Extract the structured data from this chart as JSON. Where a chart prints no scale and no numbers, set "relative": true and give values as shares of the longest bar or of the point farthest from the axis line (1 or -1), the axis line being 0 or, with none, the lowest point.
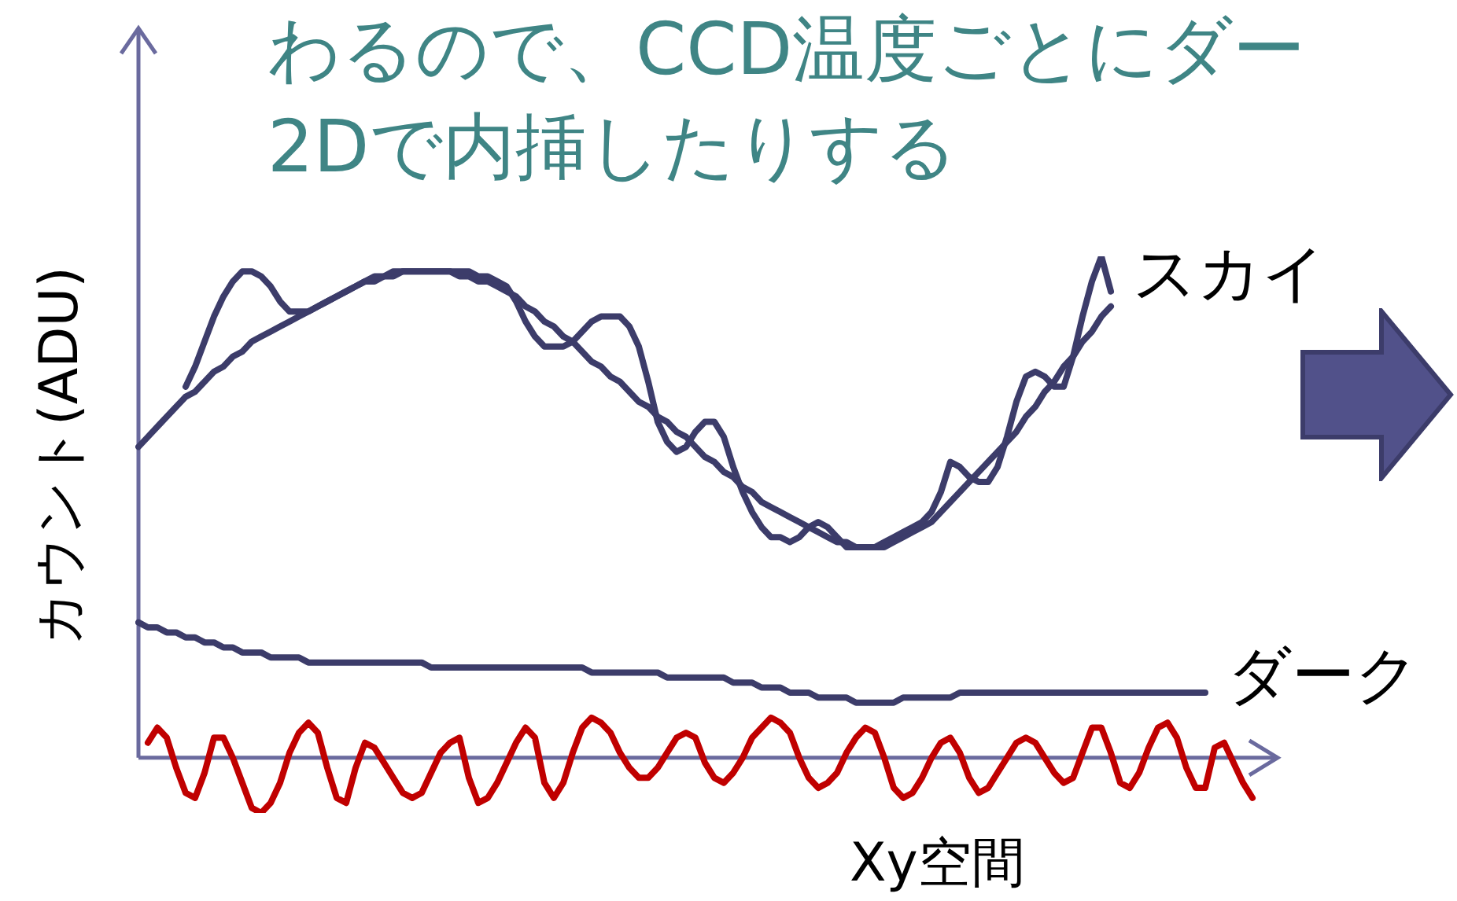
{
  "chart_data": {
    "type": "line",
    "relative": true,
    "title": "わるので、CCD温度ごとにダー\n2Dで内挿したりする",
    "xlabel": "Xy空間",
    "ylabel": "カウント(ADU)",
    "ref_lines": [
      {
        "axis": "y",
        "value": 0,
        "color": "#6a6a9e"
      }
    ],
    "grid": false,
    "legend": false,
    "marker": "none",
    "line_style": "solid",
    "categories": [
      null,
      null,
      null,
      null,
      null,
      null,
      null,
      null,
      null,
      null,
      null,
      null,
      null,
      null,
      null,
      null,
      null,
      null,
      null,
      null,
      null,
      null,
      null,
      null,
      null,
      null,
      null,
      null,
      null,
      null,
      null,
      null,
      null,
      null,
      null,
      null,
      null,
      null,
      null,
      null,
      null,
      null,
      null,
      null,
      null,
      null,
      null,
      null,
      null,
      null,
      null,
      null,
      null,
      null,
      null,
      null,
      null,
      null,
      null,
      null,
      null,
      null,
      null,
      null,
      null,
      null,
      null,
      null,
      null,
      null,
      null,
      null,
      null,
      null,
      null,
      null,
      null,
      null,
      null,
      null,
      null,
      null,
      null,
      null,
      null,
      null,
      null,
      null,
      null,
      null,
      null,
      null,
      null,
      null,
      null,
      null,
      null,
      null,
      null,
      null,
      null,
      null,
      null,
      null,
      null,
      null,
      null,
      null,
      null,
      null,
      null,
      null,
      null,
      null,
      null,
      null,
      null,
      null,
      null,
      null,
      null
    ],
    "series": [
      {
        "name": "スカイ",
        "color": "#3c3c6a",
        "values": [
          null,
          null,
          null,
          null,
          null,
          0.74,
          0.78,
          0.83,
          0.88,
          0.92,
          0.95,
          0.97,
          0.97,
          0.96,
          0.94,
          0.91,
          0.89,
          0.89,
          0.89,
          0.9,
          0.91,
          0.92,
          0.93,
          0.94,
          0.95,
          0.96,
          0.96,
          0.97,
          0.97,
          0.97,
          0.97,
          0.97,
          0.97,
          0.97,
          0.97,
          0.97,
          0.96,
          0.96,
          0.95,
          0.94,
          0.91,
          0.87,
          0.84,
          0.82,
          0.82,
          0.82,
          0.83,
          0.85,
          0.87,
          0.88,
          0.88,
          0.88,
          0.86,
          0.82,
          0.75,
          0.67,
          0.63,
          0.61,
          0.62,
          0.65,
          0.67,
          0.67,
          0.64,
          0.58,
          0.53,
          0.49,
          0.46,
          0.44,
          0.44,
          0.43,
          0.44,
          0.46,
          0.47,
          0.46,
          0.44,
          0.42,
          0.42,
          0.42,
          0.42,
          0.43,
          0.44,
          0.45,
          0.46,
          0.47,
          0.49,
          0.53,
          0.59,
          0.58,
          0.56,
          0.55,
          0.55,
          0.58,
          0.64,
          0.71,
          0.76,
          0.77,
          0.76,
          0.74,
          0.74,
          0.8,
          0.88,
          0.95,
          1,
          0.93,
          null,
          null,
          null,
          null,
          null,
          null,
          null,
          null,
          null,
          null,
          null,
          null,
          null,
          null,
          null,
          null,
          null
        ]
      },
      {
        "color": "#3c3c6a",
        "values": [
          0.62,
          0.64,
          0.66,
          0.68,
          0.7,
          0.72,
          0.73,
          0.75,
          0.77,
          0.78,
          0.8,
          0.81,
          0.83,
          0.84,
          0.85,
          0.86,
          0.87,
          0.88,
          0.89,
          0.9,
          0.91,
          0.92,
          0.93,
          0.94,
          0.95,
          0.95,
          0.96,
          0.96,
          0.97,
          0.97,
          0.97,
          0.97,
          0.97,
          0.97,
          0.96,
          0.96,
          0.95,
          0.95,
          0.94,
          0.93,
          0.92,
          0.9,
          0.89,
          0.87,
          0.86,
          0.84,
          0.83,
          0.81,
          0.79,
          0.78,
          0.76,
          0.75,
          0.73,
          0.71,
          0.7,
          0.68,
          0.67,
          0.65,
          0.64,
          0.62,
          0.6,
          0.59,
          0.57,
          0.56,
          0.54,
          0.53,
          0.51,
          0.5,
          0.49,
          0.48,
          0.47,
          0.46,
          0.45,
          0.44,
          0.43,
          0.43,
          0.42,
          0.42,
          0.42,
          0.42,
          0.43,
          0.44,
          0.45,
          0.46,
          0.47,
          0.49,
          0.51,
          0.53,
          0.55,
          0.57,
          0.59,
          0.61,
          0.63,
          0.65,
          0.68,
          0.7,
          0.73,
          0.75,
          0.78,
          0.8,
          0.83,
          0.85,
          0.88,
          0.9,
          null,
          null,
          null,
          null,
          null,
          null,
          null,
          null,
          null,
          null,
          null,
          null,
          null,
          null,
          null,
          null,
          null
        ]
      },
      {
        "name": "ダーク",
        "color": "#3c3c6a",
        "values": [
          0.27,
          0.26,
          0.26,
          0.25,
          0.25,
          0.24,
          0.24,
          0.23,
          0.23,
          0.22,
          0.22,
          0.21,
          0.21,
          0.21,
          0.2,
          0.2,
          0.2,
          0.2,
          0.19,
          0.19,
          0.19,
          0.19,
          0.19,
          0.19,
          0.19,
          0.19,
          0.19,
          0.19,
          0.19,
          0.19,
          0.19,
          0.18,
          0.18,
          0.18,
          0.18,
          0.18,
          0.18,
          0.18,
          0.18,
          0.18,
          0.18,
          0.18,
          0.18,
          0.18,
          0.18,
          0.18,
          0.18,
          0.18,
          0.17,
          0.17,
          0.17,
          0.17,
          0.17,
          0.17,
          0.17,
          0.17,
          0.16,
          0.16,
          0.16,
          0.16,
          0.16,
          0.16,
          0.16,
          0.15,
          0.15,
          0.15,
          0.14,
          0.14,
          0.14,
          0.13,
          0.13,
          0.13,
          0.12,
          0.12,
          0.12,
          0.12,
          0.11,
          0.11,
          0.11,
          0.11,
          0.11,
          0.12,
          0.12,
          0.12,
          0.12,
          0.12,
          0.12,
          0.13,
          0.13,
          0.13,
          0.13,
          0.13,
          0.13,
          0.13,
          0.13,
          0.13,
          0.13,
          0.13,
          0.13,
          0.13,
          0.13,
          0.13,
          0.13,
          0.13,
          0.13,
          0.13,
          0.13,
          0.13,
          0.13,
          0.13,
          0.13,
          0.13,
          0.13,
          0.13,
          null,
          null,
          null,
          null,
          null,
          null,
          null
        ]
      },
      {
        "color": "#c00000",
        "values": [
          null,
          0.03,
          0.06,
          0.04,
          -0.02,
          -0.07,
          -0.08,
          -0.03,
          0.04,
          0.04,
          0,
          -0.05,
          -0.1,
          -0.11,
          -0.09,
          -0.05,
          0.01,
          0.05,
          0.07,
          0.05,
          -0.02,
          -0.08,
          -0.09,
          -0.02,
          0.03,
          0.02,
          -0.01,
          -0.04,
          -0.07,
          -0.08,
          -0.07,
          -0.03,
          0.01,
          0.03,
          0.04,
          -0.04,
          -0.09,
          -0.08,
          -0.05,
          -0.01,
          0.03,
          0.06,
          0.04,
          -0.05,
          -0.08,
          -0.05,
          0.01,
          0.06,
          0.08,
          0.07,
          0.05,
          0.01,
          -0.02,
          -0.04,
          -0.04,
          -0.02,
          0.01,
          0.04,
          0.05,
          0.04,
          -0.01,
          -0.04,
          -0.05,
          -0.03,
          0,
          0.04,
          0.06,
          0.08,
          0.07,
          0.05,
          0,
          -0.04,
          -0.06,
          -0.05,
          -0.03,
          0.01,
          0.04,
          0.06,
          0.05,
          0,
          -0.06,
          -0.08,
          -0.07,
          -0.04,
          0,
          0.03,
          0.04,
          0.01,
          -0.04,
          -0.07,
          -0.06,
          -0.03,
          0,
          0.03,
          0.04,
          0.03,
          0,
          -0.03,
          -0.05,
          -0.04,
          0.01,
          0.06,
          0.06,
          0.01,
          -0.05,
          -0.06,
          -0.03,
          0.02,
          0.06,
          0.07,
          0.04,
          -0.02,
          -0.06,
          -0.06,
          0.02,
          0.03,
          -0.01,
          -0.05,
          -0.08,
          null,
          null
        ]
      }
    ]
  }
}
